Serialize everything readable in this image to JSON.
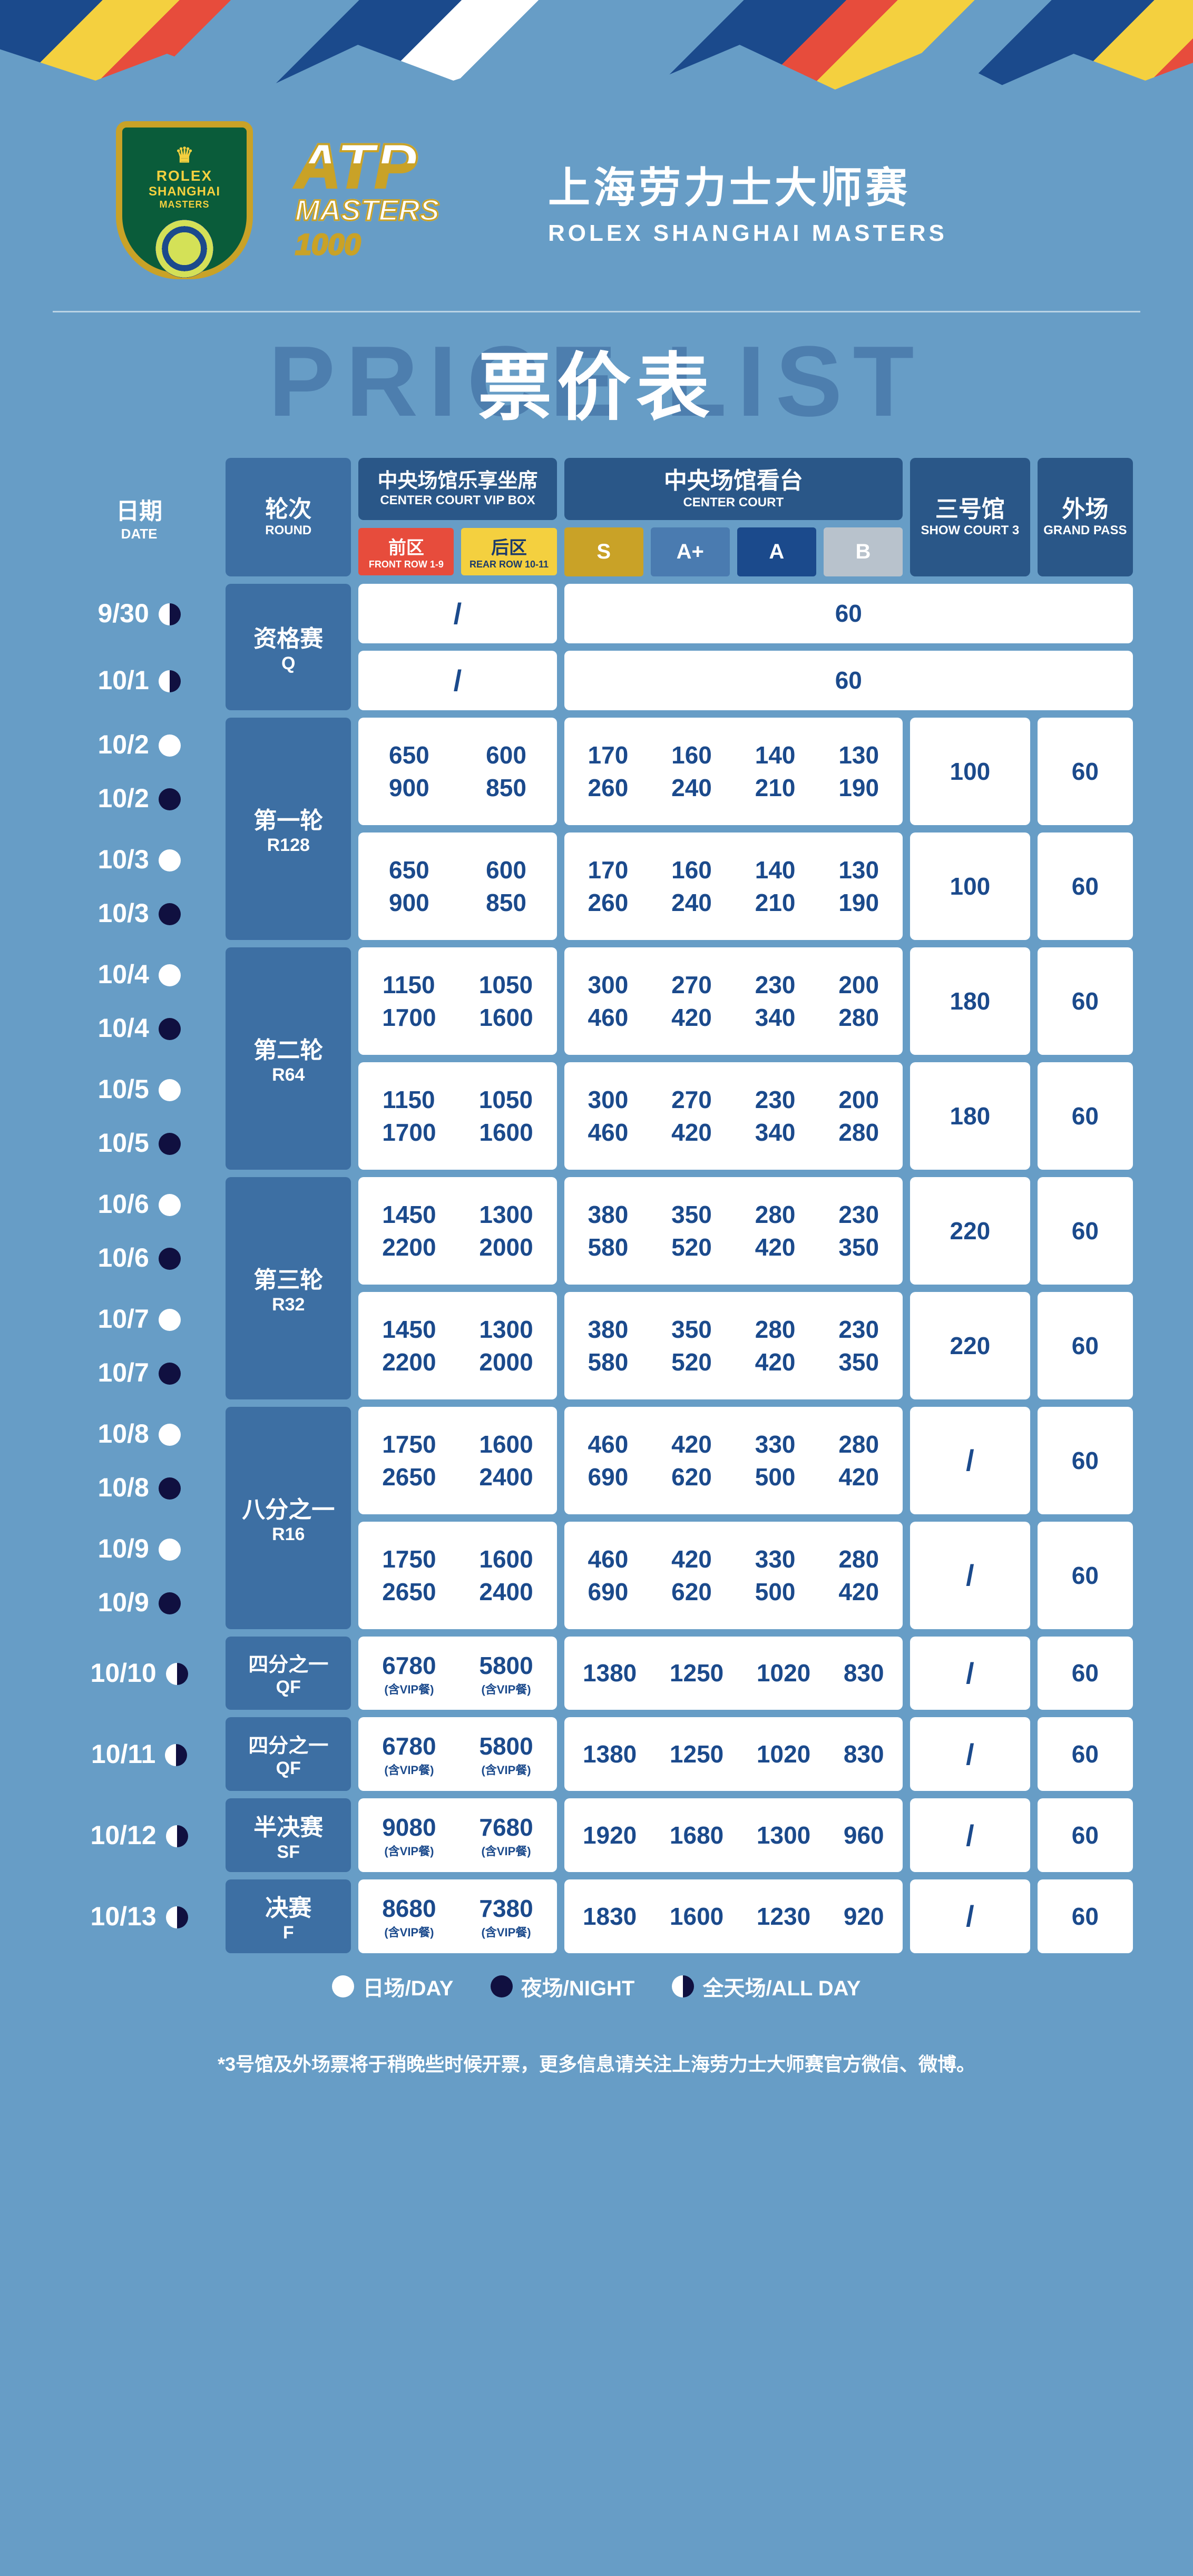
{
  "colors": {
    "page_bg": "#679dc6",
    "header_blue": "#3d6fa3",
    "header_dark": "#2a5788",
    "price_text": "#1b4a8c",
    "front_bg": "#e74c3c",
    "rear_bg": "#f4d03f",
    "seat_s": "#c9a227",
    "seat_ap": "#4a7bb0",
    "seat_a": "#1b4a8c",
    "seat_b": "#b8c2cc",
    "day": "#ffffff",
    "night": "#101040"
  },
  "logo": {
    "brand": "ROLEX",
    "city": "SHANGHAI",
    "event": "MASTERS",
    "atp_top": "ATP",
    "atp_bot": "MASTERS 1000"
  },
  "event_title": {
    "cn": "上海劳力士大师赛",
    "en": "ROLEX SHANGHAI MASTERS"
  },
  "page_title": "票价表",
  "headers": {
    "date": {
      "cn": "日期",
      "en": "DATE"
    },
    "round": {
      "cn": "轮次",
      "en": "ROUND"
    },
    "vip": {
      "cn": "中央场馆乐享坐席",
      "en": "CENTER COURT VIP BOX"
    },
    "vip_front": {
      "cn": "前区",
      "en": "FRONT ROW 1-9"
    },
    "vip_rear": {
      "cn": "后区",
      "en": "REAR ROW 10-11"
    },
    "center": {
      "cn": "中央场馆看台",
      "en": "CENTER COURT"
    },
    "seat_s": "S",
    "seat_ap": "A+",
    "seat_a": "A",
    "seat_b": "B",
    "court3": {
      "cn": "三号馆",
      "en": "SHOW COURT 3"
    },
    "grand": {
      "cn": "外场",
      "en": "GRAND PASS"
    }
  },
  "vip_note": "(含VIP餐)",
  "slash": "/",
  "rounds": {
    "q": {
      "cn": "资格赛",
      "en": "Q"
    },
    "r128": {
      "cn": "第一轮",
      "en": "R128"
    },
    "r64": {
      "cn": "第二轮",
      "en": "R64"
    },
    "r32": {
      "cn": "第三轮",
      "en": "R32"
    },
    "r16": {
      "cn": "八分之一",
      "en": "R16"
    },
    "qf": {
      "cn": "四分之一",
      "en": "QF"
    },
    "sf": {
      "cn": "半决赛",
      "en": "SF"
    },
    "f": {
      "cn": "决赛",
      "en": "F"
    }
  },
  "dates": {
    "d0930": "9/30",
    "d1001": "10/1",
    "d1002": "10/2",
    "d1003": "10/3",
    "d1004": "10/4",
    "d1005": "10/5",
    "d1006": "10/6",
    "d1007": "10/7",
    "d1008": "10/8",
    "d1009": "10/9",
    "d1010": "10/10",
    "d1011": "10/11",
    "d1012": "10/12",
    "d1013": "10/13"
  },
  "prices": {
    "q_flat": "60",
    "r128": {
      "day": {
        "front": "650",
        "rear": "600",
        "s": "170",
        "ap": "160",
        "a": "140",
        "b": "130"
      },
      "night": {
        "front": "900",
        "rear": "850",
        "s": "260",
        "ap": "240",
        "a": "210",
        "b": "190"
      },
      "c3": "100",
      "gp": "60"
    },
    "r64": {
      "day": {
        "front": "1150",
        "rear": "1050",
        "s": "300",
        "ap": "270",
        "a": "230",
        "b": "200"
      },
      "night": {
        "front": "1700",
        "rear": "1600",
        "s": "460",
        "ap": "420",
        "a": "340",
        "b": "280"
      },
      "c3": "180",
      "gp": "60"
    },
    "r32": {
      "day": {
        "front": "1450",
        "rear": "1300",
        "s": "380",
        "ap": "350",
        "a": "280",
        "b": "230"
      },
      "night": {
        "front": "2200",
        "rear": "2000",
        "s": "580",
        "ap": "520",
        "a": "420",
        "b": "350"
      },
      "c3": "220",
      "gp": "60"
    },
    "r16": {
      "day": {
        "front": "1750",
        "rear": "1600",
        "s": "460",
        "ap": "420",
        "a": "330",
        "b": "280"
      },
      "night": {
        "front": "2650",
        "rear": "2400",
        "s": "690",
        "ap": "620",
        "a": "500",
        "b": "420"
      },
      "c3": "/",
      "gp": "60"
    },
    "qf": {
      "front": "6780",
      "rear": "5800",
      "s": "1380",
      "ap": "1250",
      "a": "1020",
      "b": "830",
      "c3": "/",
      "gp": "60"
    },
    "sf": {
      "front": "9080",
      "rear": "7680",
      "s": "1920",
      "ap": "1680",
      "a": "1300",
      "b": "960",
      "c3": "/",
      "gp": "60"
    },
    "f": {
      "front": "8680",
      "rear": "7380",
      "s": "1830",
      "ap": "1600",
      "a": "1230",
      "b": "920",
      "c3": "/",
      "gp": "60"
    }
  },
  "legend": {
    "day": "日场/DAY",
    "night": "夜场/NIGHT",
    "all": "全天场/ALL DAY"
  },
  "footnote": "*3号馆及外场票将于稍晚些时候开票，更多信息请关注上海劳力士大师赛官方微信、微博。"
}
